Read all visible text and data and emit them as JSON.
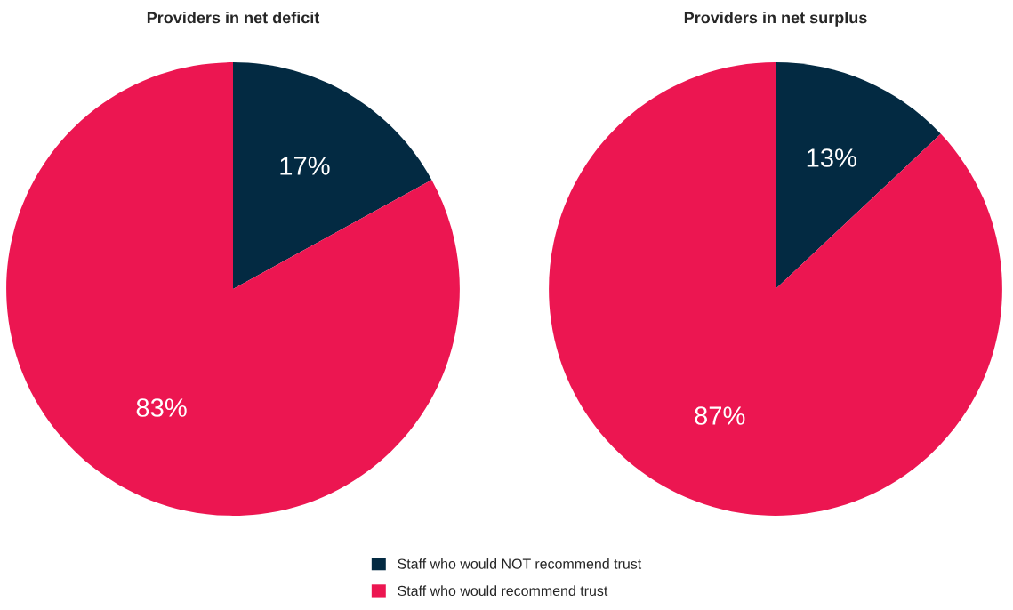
{
  "chart_data": [
    {
      "type": "pie",
      "title": "Providers in net deficit",
      "categories": [
        "Staff who would NOT recommend trust",
        "Staff who would recommend trust"
      ],
      "values": [
        17,
        83
      ],
      "colors": [
        "#032a42",
        "#ec1651"
      ],
      "value_labels": [
        "17%",
        "83%"
      ],
      "legend": "bottom"
    },
    {
      "type": "pie",
      "title": "Providers in net surplus",
      "values": [
        13,
        87
      ],
      "colors": [
        "#032a42",
        "#ec1651"
      ],
      "value_labels": [
        "13%",
        "87%"
      ]
    }
  ]
}
